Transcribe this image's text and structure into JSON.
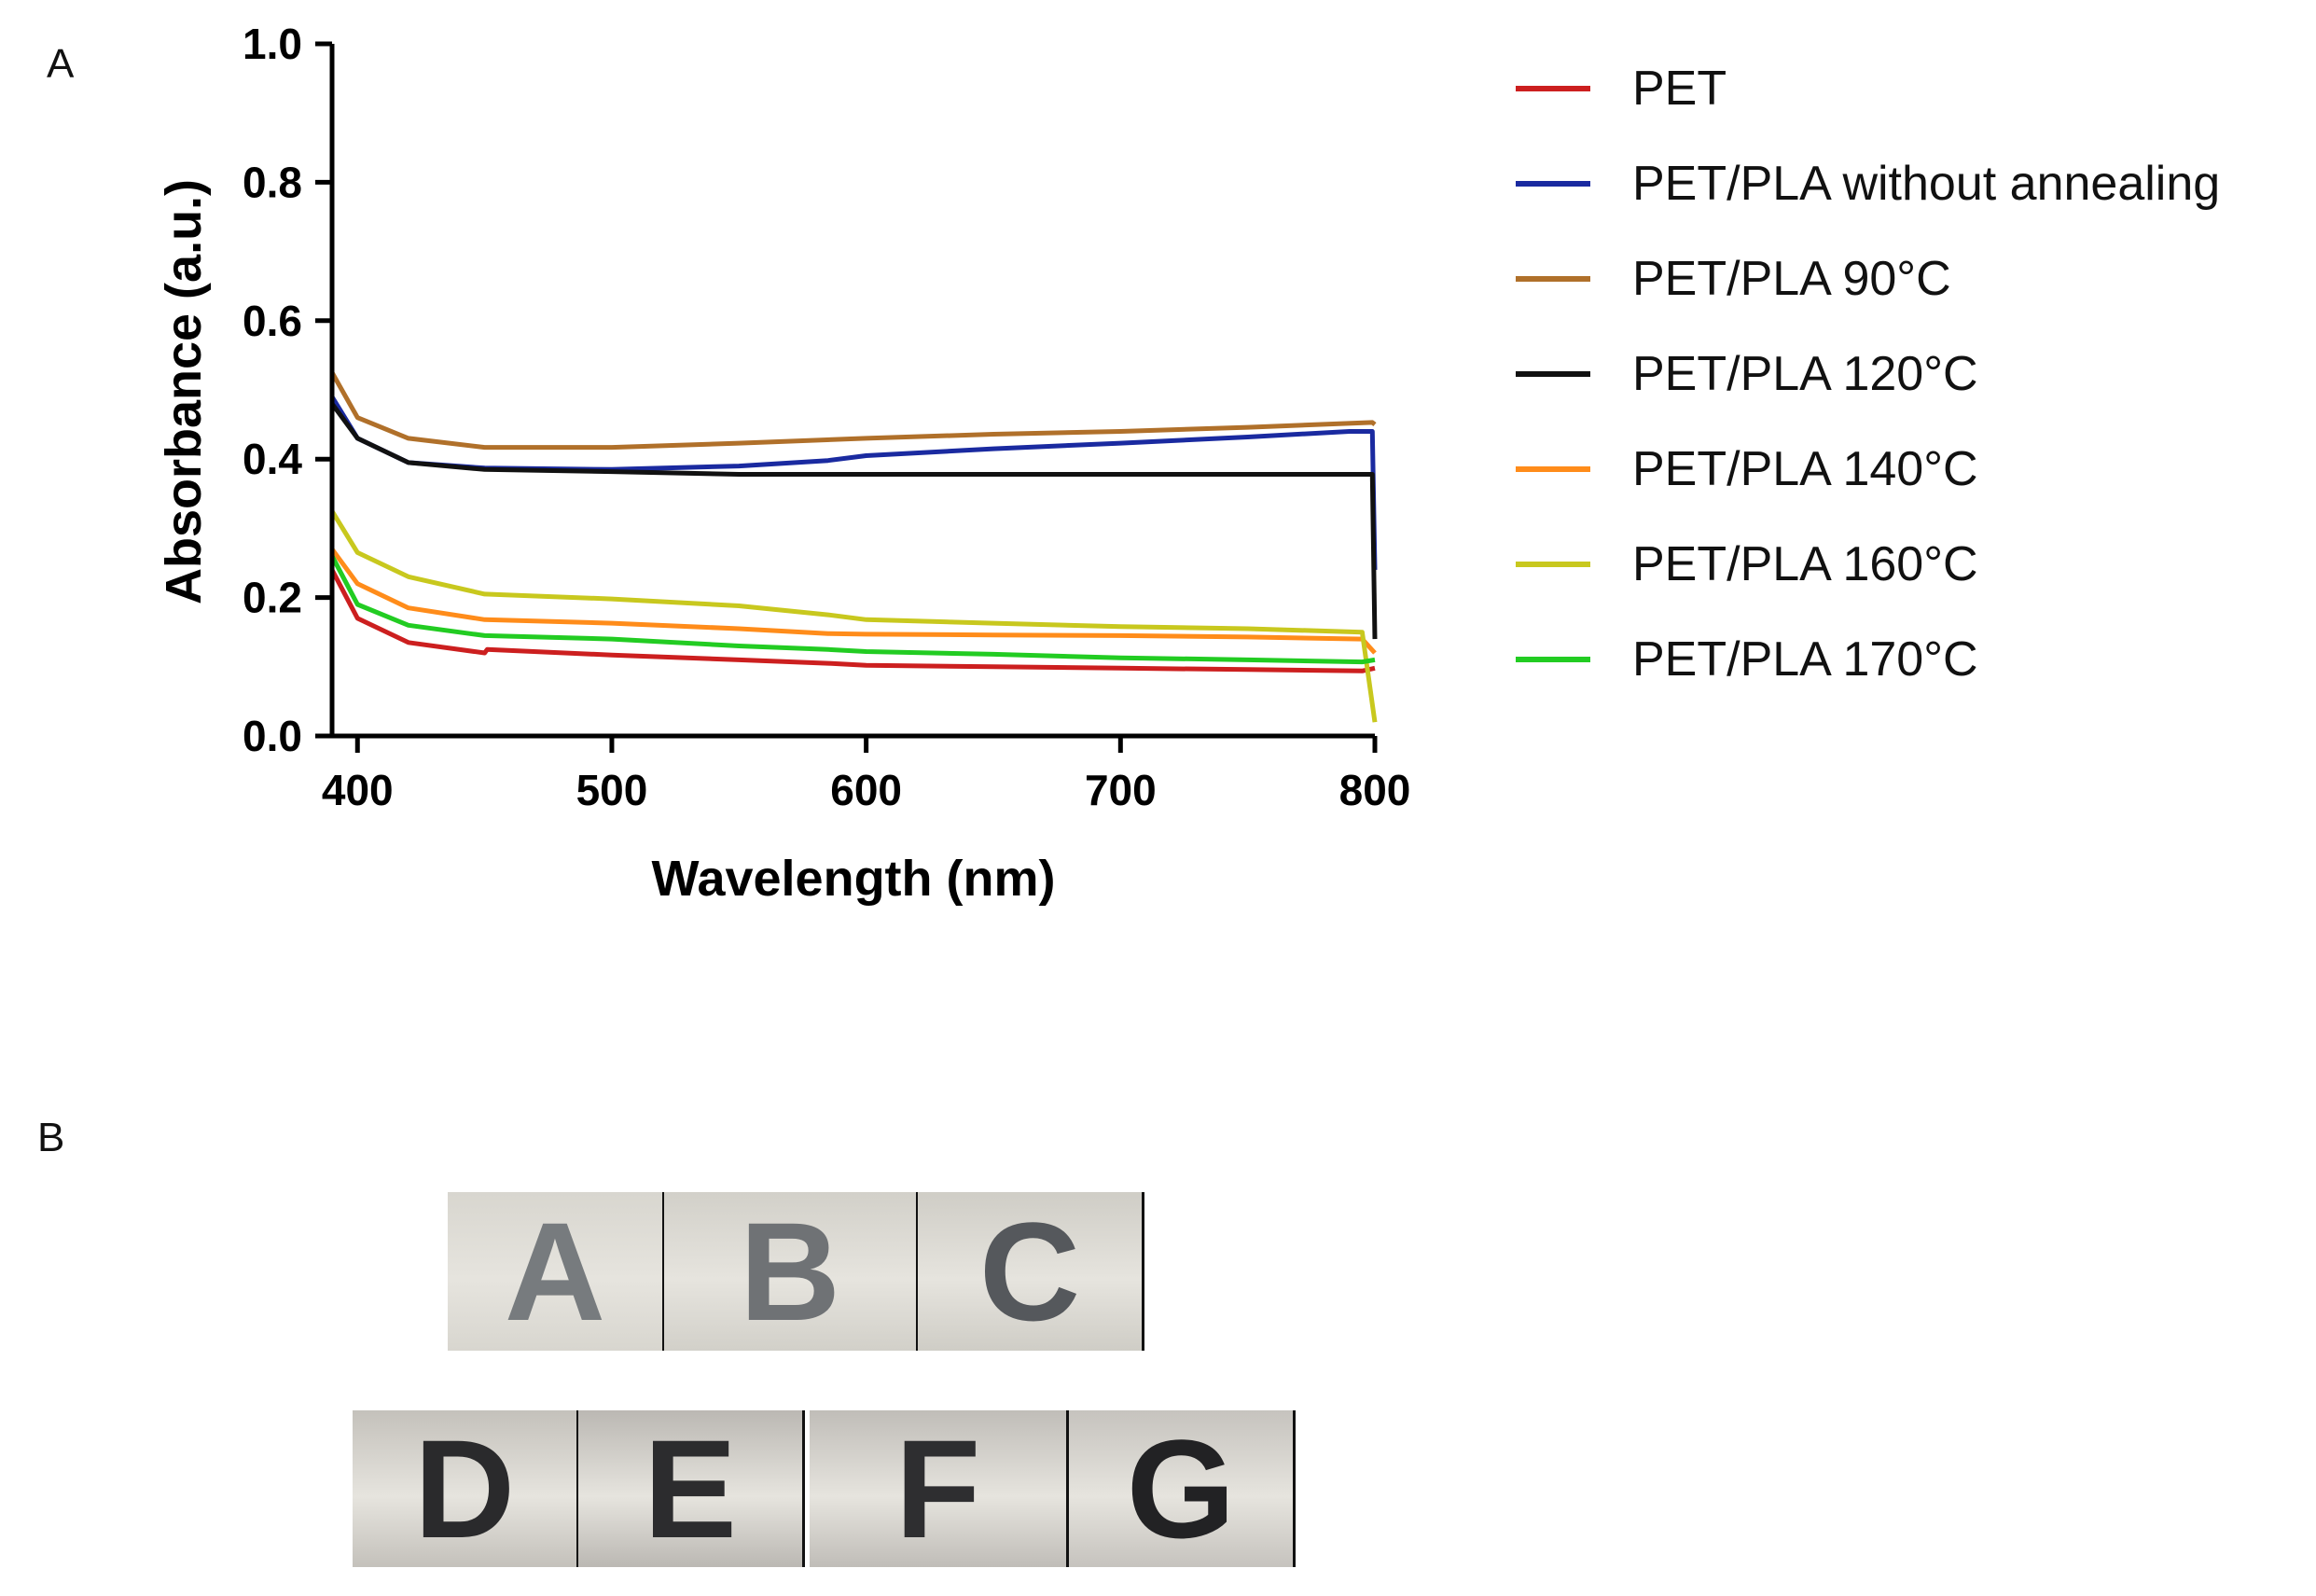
{
  "panel_labels": {
    "a": "A",
    "b": "B"
  },
  "chart_data": {
    "type": "line",
    "title": "",
    "xlabel": "Wavelength (nm)",
    "ylabel": "Absorbance (a.u.)",
    "xlim": [
      390,
      800
    ],
    "ylim": [
      0.0,
      1.0
    ],
    "x_ticks": [
      400,
      500,
      600,
      700,
      800
    ],
    "x_tick_labels": [
      "400",
      "500",
      "600",
      "700",
      "800"
    ],
    "y_ticks": [
      0.0,
      0.2,
      0.4,
      0.6,
      0.8,
      1.0
    ],
    "y_tick_labels": [
      "0.0",
      "0.2",
      "0.4",
      "0.6",
      "0.8",
      "1.0"
    ],
    "legend_position": "right",
    "series": [
      {
        "name": "PET",
        "color": "#cc1f1f",
        "points": [
          [
            390,
            0.24
          ],
          [
            400,
            0.17
          ],
          [
            420,
            0.135
          ],
          [
            450,
            0.12
          ],
          [
            451,
            0.125
          ],
          [
            500,
            0.117
          ],
          [
            550,
            0.11
          ],
          [
            585,
            0.105
          ],
          [
            600,
            0.102
          ],
          [
            650,
            0.1
          ],
          [
            700,
            0.098
          ],
          [
            750,
            0.096
          ],
          [
            795,
            0.094
          ],
          [
            800,
            0.098
          ]
        ]
      },
      {
        "name": "PET/PLA without annealing",
        "color": "#1a2aa0",
        "points": [
          [
            390,
            0.49
          ],
          [
            400,
            0.43
          ],
          [
            420,
            0.395
          ],
          [
            450,
            0.387
          ],
          [
            500,
            0.385
          ],
          [
            550,
            0.39
          ],
          [
            585,
            0.398
          ],
          [
            600,
            0.405
          ],
          [
            650,
            0.415
          ],
          [
            700,
            0.423
          ],
          [
            750,
            0.432
          ],
          [
            790,
            0.44
          ],
          [
            799,
            0.44
          ],
          [
            800,
            0.24
          ]
        ]
      },
      {
        "name": "PET/PLA 90°C",
        "color": "#b0702a",
        "points": [
          [
            390,
            0.525
          ],
          [
            400,
            0.46
          ],
          [
            420,
            0.43
          ],
          [
            450,
            0.417
          ],
          [
            500,
            0.417
          ],
          [
            550,
            0.423
          ],
          [
            600,
            0.43
          ],
          [
            650,
            0.436
          ],
          [
            700,
            0.44
          ],
          [
            750,
            0.446
          ],
          [
            799,
            0.453
          ],
          [
            800,
            0.45
          ]
        ]
      },
      {
        "name": "PET/PLA 120°C",
        "color": "#111111",
        "points": [
          [
            390,
            0.48
          ],
          [
            400,
            0.43
          ],
          [
            420,
            0.395
          ],
          [
            450,
            0.385
          ],
          [
            500,
            0.382
          ],
          [
            550,
            0.378
          ],
          [
            600,
            0.378
          ],
          [
            650,
            0.378
          ],
          [
            700,
            0.378
          ],
          [
            750,
            0.378
          ],
          [
            799,
            0.378
          ],
          [
            800,
            0.14
          ]
        ]
      },
      {
        "name": "PET/PLA 140°C",
        "color": "#ff8c1a",
        "points": [
          [
            390,
            0.27
          ],
          [
            400,
            0.22
          ],
          [
            420,
            0.185
          ],
          [
            450,
            0.168
          ],
          [
            500,
            0.163
          ],
          [
            550,
            0.155
          ],
          [
            585,
            0.148
          ],
          [
            600,
            0.147
          ],
          [
            650,
            0.146
          ],
          [
            700,
            0.145
          ],
          [
            750,
            0.143
          ],
          [
            795,
            0.14
          ],
          [
            800,
            0.12
          ]
        ]
      },
      {
        "name": "PET/PLA 160°C",
        "color": "#c8c81e",
        "points": [
          [
            390,
            0.325
          ],
          [
            400,
            0.265
          ],
          [
            420,
            0.23
          ],
          [
            450,
            0.205
          ],
          [
            500,
            0.198
          ],
          [
            550,
            0.188
          ],
          [
            585,
            0.175
          ],
          [
            600,
            0.168
          ],
          [
            650,
            0.163
          ],
          [
            700,
            0.158
          ],
          [
            750,
            0.155
          ],
          [
            795,
            0.15
          ],
          [
            800,
            0.02
          ]
        ]
      },
      {
        "name": "PET/PLA 170°C",
        "color": "#22cc22",
        "points": [
          [
            390,
            0.26
          ],
          [
            400,
            0.19
          ],
          [
            420,
            0.16
          ],
          [
            450,
            0.145
          ],
          [
            500,
            0.14
          ],
          [
            550,
            0.13
          ],
          [
            585,
            0.125
          ],
          [
            600,
            0.122
          ],
          [
            650,
            0.118
          ],
          [
            700,
            0.113
          ],
          [
            750,
            0.11
          ],
          [
            795,
            0.107
          ],
          [
            800,
            0.11
          ]
        ]
      }
    ]
  },
  "photos": {
    "row1": [
      {
        "letter": "A",
        "bg": "#d8d6cf",
        "fg": "#777b7e"
      },
      {
        "letter": "B",
        "bg": "#d2d0c9",
        "fg": "#6f7275"
      },
      {
        "letter": "C",
        "bg": "#cfcdc6",
        "fg": "#55585c"
      }
    ],
    "row2": [
      {
        "letter": "D",
        "bg": "#c4c1bb",
        "fg": "#2a2a2c"
      },
      {
        "letter": "E",
        "bg": "#bbb8b3",
        "fg": "#2c2c2e"
      },
      {
        "letter": "F",
        "bg": "#c0bdb8",
        "fg": "#2e2e30"
      },
      {
        "letter": "G",
        "bg": "#c6c3be",
        "fg": "#222224"
      }
    ]
  }
}
